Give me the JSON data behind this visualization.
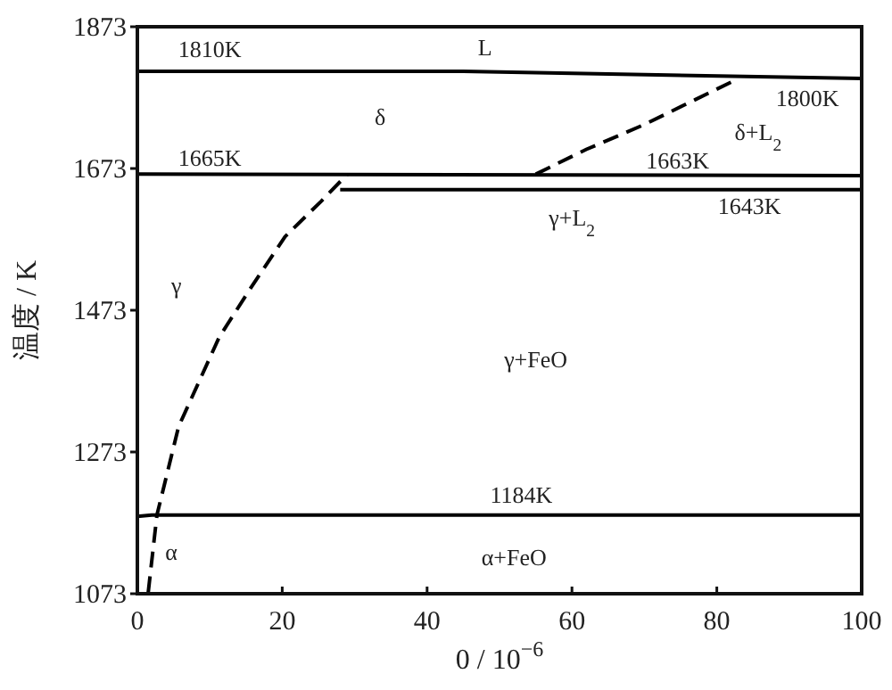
{
  "chart_data": {
    "type": "line",
    "xlabel": "0 / 10$^{−6}$",
    "ylabel": "温度 / K",
    "xlim": [
      0,
      100
    ],
    "ylim": [
      1073,
      1873
    ],
    "xticks": [
      0,
      20,
      40,
      60,
      80,
      100
    ],
    "yticks": [
      1073,
      1273,
      1473,
      1673,
      1873
    ],
    "series": [
      {
        "x": [
          0,
          45,
          100
        ],
        "values": [
          1810,
          1810,
          1800
        ],
        "color": "#000000",
        "line_style": "solid"
      },
      {
        "x": [
          0,
          100
        ],
        "values": [
          1665,
          1663
        ],
        "color": "#000000",
        "line_style": "solid"
      },
      {
        "x": [
          28,
          100
        ],
        "values": [
          1643,
          1643
        ],
        "color": "#000000",
        "line_style": "solid"
      },
      {
        "x": [
          0,
          2,
          100
        ],
        "values": [
          1182,
          1184,
          1184
        ],
        "color": "#000000",
        "line_style": "solid"
      },
      {
        "x": [
          1.5,
          2.7,
          5.7,
          11.3,
          15.5,
          20.4,
          25.4,
          29
        ],
        "values": [
          1075,
          1184,
          1309,
          1435,
          1502,
          1577,
          1627,
          1665
        ],
        "color": "#000000",
        "line_style": "dashed"
      },
      {
        "x": [
          55,
          62,
          70,
          77,
          83
        ],
        "values": [
          1665,
          1700,
          1735,
          1770,
          1800
        ],
        "color": "#000000",
        "line_style": "dashed"
      }
    ],
    "annotations": [
      "1810K",
      "L",
      "δ",
      "1665K",
      "1800K",
      "δ+L$_{2}$",
      "1663K",
      "γ+L$_{2}$",
      "1643K",
      "γ",
      "γ+FeO",
      "1184K",
      "α",
      "α+FeO"
    ]
  }
}
